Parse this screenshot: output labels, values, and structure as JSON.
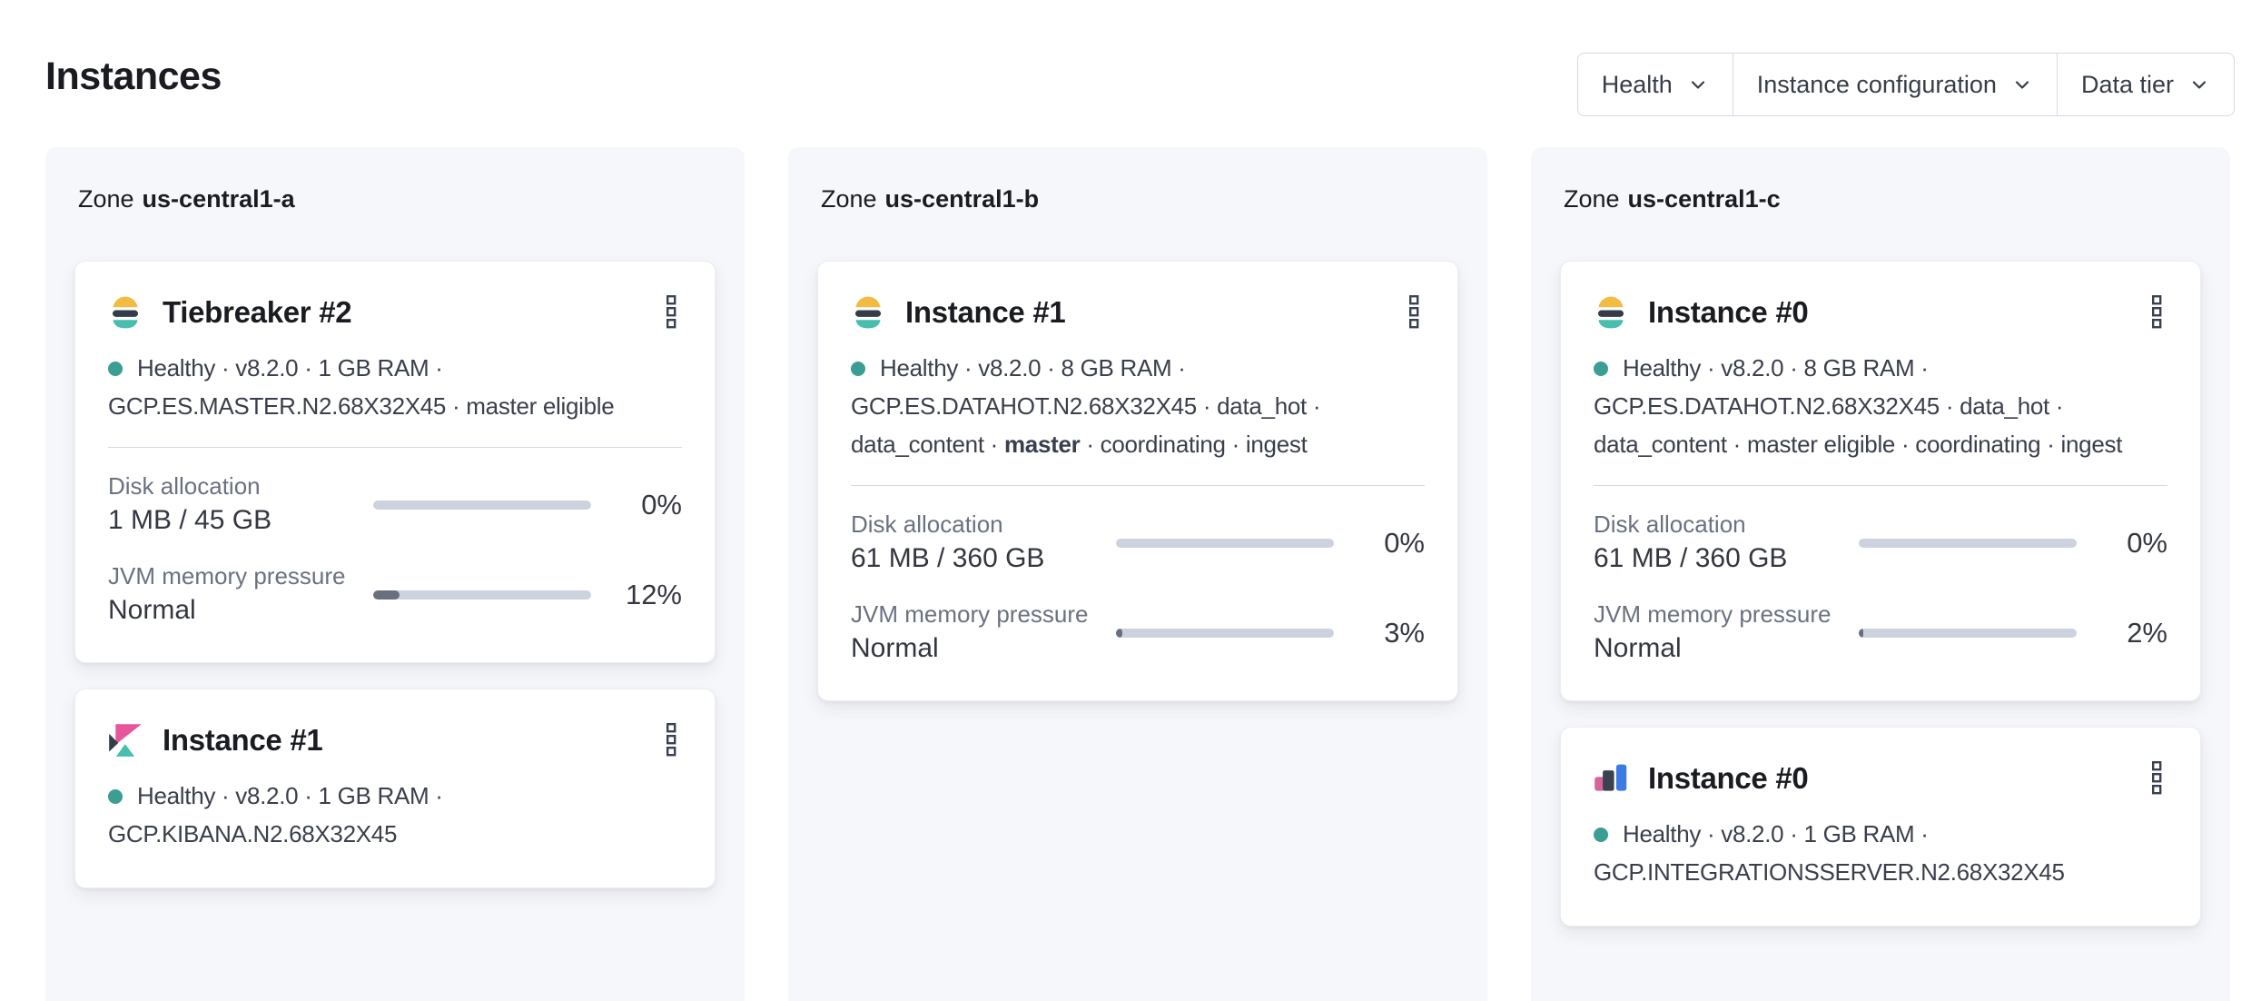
{
  "header": {
    "title": "Instances"
  },
  "filters": {
    "health_label": "Health",
    "instance_configuration_label": "Instance configuration",
    "data_tier_label": "Data tier"
  },
  "zones": [
    {
      "label_prefix": "Zone",
      "name": "us-central1-a",
      "cards": [
        {
          "icon": "elasticsearch-logo",
          "title": "Tiebreaker #2",
          "status": "Healthy",
          "meta_pre": "Healthy · v8.2.0 · 1 GB RAM · GCP.ES.MASTER.N2.68X32X45 · master eligible",
          "meta_bold": "",
          "meta_post": "",
          "metrics": [
            {
              "label": "Disk allocation",
              "value": "1 MB / 45 GB",
              "percent": "0%",
              "fill": 0
            },
            {
              "label": "JVM memory pressure",
              "value": "Normal",
              "percent": "12%",
              "fill": 12
            }
          ]
        },
        {
          "icon": "kibana-logo",
          "title": "Instance #1",
          "status": "Healthy",
          "meta_pre": "Healthy · v8.2.0 · 1 GB RAM · GCP.KIBANA.N2.68X32X45"
        }
      ]
    },
    {
      "label_prefix": "Zone",
      "name": "us-central1-b",
      "cards": [
        {
          "icon": "elasticsearch-logo",
          "title": "Instance #1",
          "status": "Healthy",
          "meta_pre": "Healthy · v8.2.0 · 8 GB RAM · GCP.ES.DATAHOT.N2.68X32X45 · data_hot · data_content · ",
          "meta_bold": "master",
          "meta_post": " · coordinating · ingest",
          "metrics": [
            {
              "label": "Disk allocation",
              "value": "61 MB / 360 GB",
              "percent": "0%",
              "fill": 0
            },
            {
              "label": "JVM memory pressure",
              "value": "Normal",
              "percent": "3%",
              "fill": 3
            }
          ]
        }
      ]
    },
    {
      "label_prefix": "Zone",
      "name": "us-central1-c",
      "cards": [
        {
          "icon": "elasticsearch-logo",
          "title": "Instance #0",
          "status": "Healthy",
          "meta_pre": "Healthy · v8.2.0 · 8 GB RAM · GCP.ES.DATAHOT.N2.68X32X45 · data_hot · data_content · master eligible · coordinating · ingest",
          "meta_bold": "",
          "meta_post": "",
          "metrics": [
            {
              "label": "Disk allocation",
              "value": "61 MB / 360 GB",
              "percent": "0%",
              "fill": 0
            },
            {
              "label": "JVM memory pressure",
              "value": "Normal",
              "percent": "2%",
              "fill": 2
            }
          ]
        },
        {
          "icon": "integrations-server-logo",
          "title": "Instance #0",
          "status": "Healthy",
          "meta_pre": "Healthy · v8.2.0 · 1 GB RAM · GCP.INTEGRATIONSSERVER.N2.68X32X45"
        }
      ]
    }
  ],
  "colors": {
    "healthy_dot": "#3c9e93",
    "progress_track": "#cdd3de",
    "progress_fill": "#69707d",
    "panel_background": "#f6f7fb",
    "border": "#d3dae6",
    "elastic_yellow": "#f2bc42",
    "elastic_navy": "#353c49",
    "elastic_teal": "#47beae",
    "kibana_pink": "#e8559b",
    "integrations_pink": "#d6639c",
    "integrations_blue": "#3c7ce2"
  }
}
